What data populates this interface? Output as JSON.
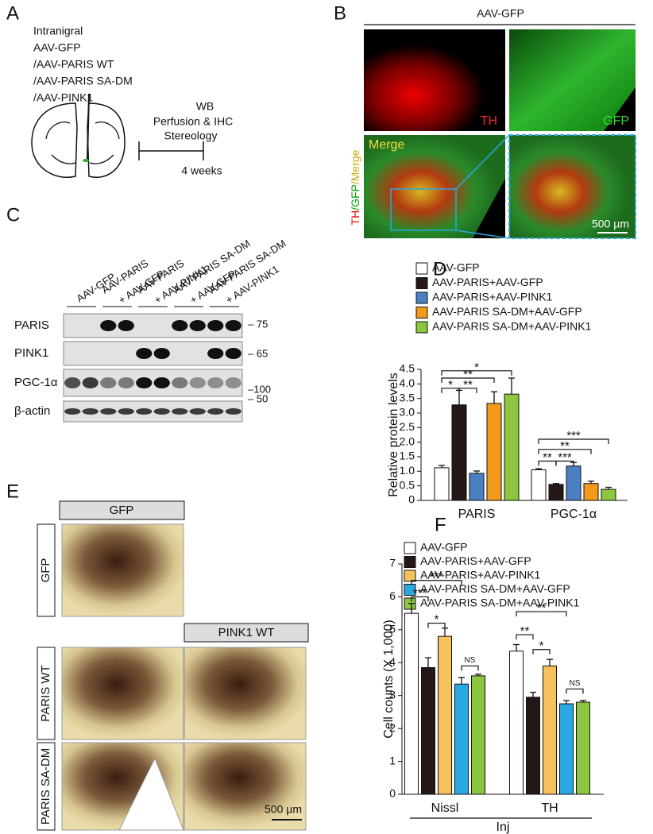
{
  "panel_a": {
    "label": "A",
    "injection": [
      "Intranigral",
      "AAV-GFP",
      "/AAV-PARIS WT",
      "/AAV-PARIS SA-DM",
      "/AAV-PINK1"
    ],
    "assays": [
      "WB",
      "Perfusion & IHC",
      "Stereology"
    ],
    "duration": "4 weeks"
  },
  "panel_b": {
    "label": "B",
    "header": "AAV-GFP",
    "th": "TH",
    "gfp": "GFP",
    "merge": "Merge",
    "side": [
      "TH",
      "/GFP",
      "/Merge"
    ],
    "scale_bar": "500 µm"
  },
  "panel_c": {
    "label": "C",
    "lanes": [
      [
        "AAV-GFP"
      ],
      [
        "AAV-PARIS",
        "+ AAV-GFP"
      ],
      [
        "AAV-PARIS",
        "+ AAV-PINK1"
      ],
      [
        "AAV-PARIS SA-DM",
        "+ AAV-GFP"
      ],
      [
        "AAV-PARIS SA-DM",
        "+ AAV-PINK1"
      ]
    ],
    "blots": [
      "PARIS",
      "PINK1",
      "PGC-1α",
      "β-actin"
    ],
    "markers": [
      "– 75",
      "– 65",
      "–100",
      "– 50"
    ]
  },
  "panel_e": {
    "label": "E",
    "columns": [
      "GFP",
      "PINK1 WT"
    ],
    "rows": [
      "GFP",
      "PARIS WT",
      "PARIS SA-DM"
    ],
    "scale_bar": "500 µm"
  },
  "chart_data": [
    {
      "type": "bar",
      "label": "D",
      "ylabel": "Relative protein levels",
      "categories": [
        "PARIS",
        "PGC-1α"
      ],
      "series": [
        {
          "name": "AAV-GFP",
          "color": "#ffffff",
          "values": [
            1.12,
            1.05
          ],
          "errors": [
            0.08,
            0.04
          ]
        },
        {
          "name": "AAV-PARIS+AAV-GFP",
          "color": "#231815",
          "values": [
            3.28,
            0.55
          ],
          "errors": [
            0.5,
            0.03
          ]
        },
        {
          "name": "AAV-PARIS+AAV-PINK1",
          "color": "#4a7fc1",
          "values": [
            0.93,
            1.18
          ],
          "errors": [
            0.08,
            0.12
          ]
        },
        {
          "name": "AAV-PARIS SA-DM+AAV-GFP",
          "color": "#f39a1b",
          "values": [
            3.33,
            0.58
          ],
          "errors": [
            0.4,
            0.08
          ]
        },
        {
          "name": "AAV-PARIS SA-DM+AAV-PINK1",
          "color": "#8cc63f",
          "values": [
            3.65,
            0.38
          ],
          "errors": [
            0.55,
            0.07
          ]
        }
      ],
      "ylim": [
        0,
        4.5
      ],
      "yticks": [
        0,
        0.5,
        {
          "value": 1,
          "label": "1.0"
        },
        1.5,
        {
          "value": 2,
          "label": "2.0"
        },
        2.5,
        {
          "value": 3,
          "label": "3.0"
        },
        3.5,
        {
          "value": 4,
          "label": "4.0"
        },
        4.5
      ],
      "significance": [
        "*",
        "**",
        "**",
        "*",
        "**",
        "***",
        "**",
        "***"
      ]
    },
    {
      "type": "bar",
      "label": "F",
      "ylabel": "Cell counts (X 1,000)",
      "xlabel": "Inj",
      "categories": [
        "Nissl",
        "TH"
      ],
      "series": [
        {
          "name": "AAV-GFP",
          "color": "#ffffff",
          "values": [
            5.5,
            4.35
          ],
          "errors": [
            0.3,
            0.2
          ]
        },
        {
          "name": "AAV-PARIS+AAV-GFP",
          "color": "#231815",
          "values": [
            3.85,
            2.95
          ],
          "errors": [
            0.3,
            0.15
          ]
        },
        {
          "name": "AAV-PARIS+AAV-PINK1",
          "color": "#f7c15c",
          "values": [
            4.8,
            3.9
          ],
          "errors": [
            0.25,
            0.2
          ]
        },
        {
          "name": "AAV-PARIS SA-DM+AAV-GFP",
          "color": "#29a9e1",
          "values": [
            3.35,
            2.75
          ],
          "errors": [
            0.2,
            0.1
          ]
        },
        {
          "name": "AAV-PARIS SA-DM+AAV-PINK1",
          "color": "#8cc63f",
          "values": [
            3.6,
            2.8
          ],
          "errors": [
            0.05,
            0.05
          ]
        }
      ],
      "ylim": [
        0,
        7
      ],
      "yticks": [
        0,
        1,
        2,
        3,
        4,
        5,
        6,
        7
      ],
      "significance": [
        "***",
        "*",
        "***",
        "NS",
        "**",
        "*",
        "**",
        "NS"
      ]
    }
  ]
}
